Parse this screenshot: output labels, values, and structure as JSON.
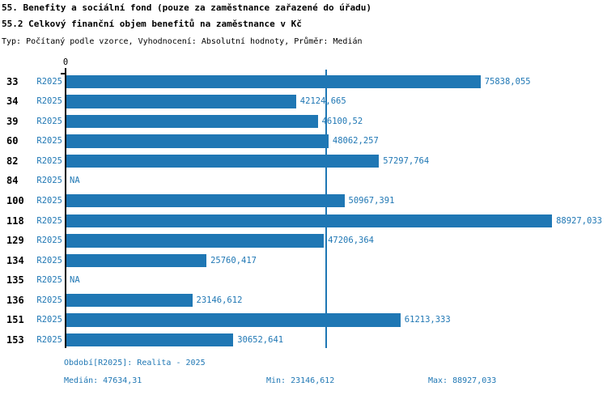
{
  "header": {
    "title_line1": "55. Benefity a sociální fond (pouze za zaměstnance zařazené do úřadu)",
    "title_line2": "55.2 Celkový finanční objem benefitů na zaměstnance v Kč",
    "meta": "Typ: Počítaný podle vzorce, Vyhodnocení: Absolutní hodnoty, Průměr: Medián"
  },
  "chart_data": {
    "type": "bar",
    "orientation": "horizontal",
    "title": "55.2 Celkový finanční objem benefitů na zaměstnance v Kč",
    "series_label": "R2025",
    "axis_zero_label": "0",
    "na_label": "NA",
    "categories": [
      "33",
      "34",
      "39",
      "60",
      "82",
      "84",
      "100",
      "118",
      "129",
      "134",
      "135",
      "136",
      "151",
      "153"
    ],
    "values": [
      75838.055,
      42124.665,
      46100.52,
      48062.257,
      57297.764,
      null,
      50967.391,
      88927.033,
      47206.364,
      25760.417,
      null,
      23146.612,
      61213.333,
      30652.641
    ],
    "value_labels": [
      "75838,055",
      "42124,665",
      "46100,52",
      "48062,257",
      "57297,764",
      "NA",
      "50967,391",
      "88927,033",
      "47206,364",
      "25760,417",
      "NA",
      "23146,612",
      "61213,333",
      "30652,641"
    ],
    "median_value": 47634.31,
    "xlim": [
      0,
      95000
    ],
    "grid": false,
    "bar_color": "#1F77B4",
    "median_line_color": "#1F77B4",
    "axis_color": "#000000"
  },
  "footer": {
    "period": "Období[R2025]: Realita - 2025",
    "median": "Medián: 47634,31",
    "min": "Min: 23146,612",
    "max": "Max: 88927,033"
  }
}
